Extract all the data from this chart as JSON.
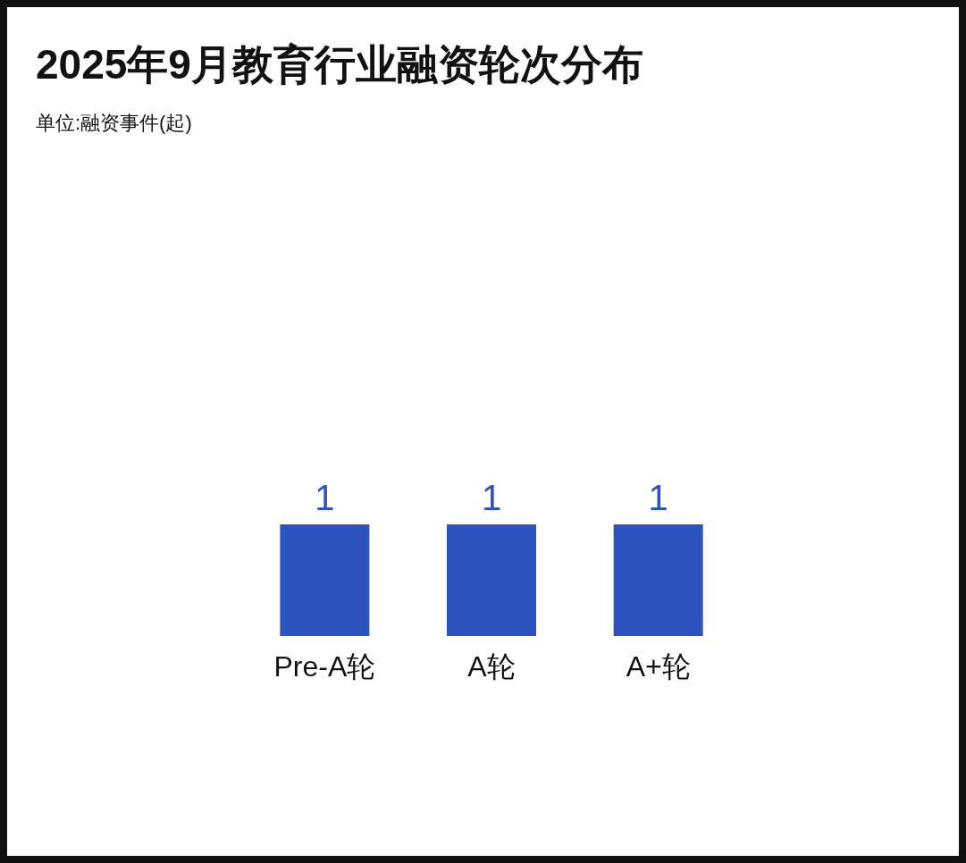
{
  "chart_data": {
    "type": "bar",
    "title": "2025年9月教育行业融资轮次分布",
    "subtitle": "单位:融资事件(起)",
    "categories": [
      "Pre-A轮",
      "A轮",
      "A+轮"
    ],
    "values": [
      1,
      1,
      1
    ],
    "color": "#2c52be",
    "data_labels": true
  }
}
